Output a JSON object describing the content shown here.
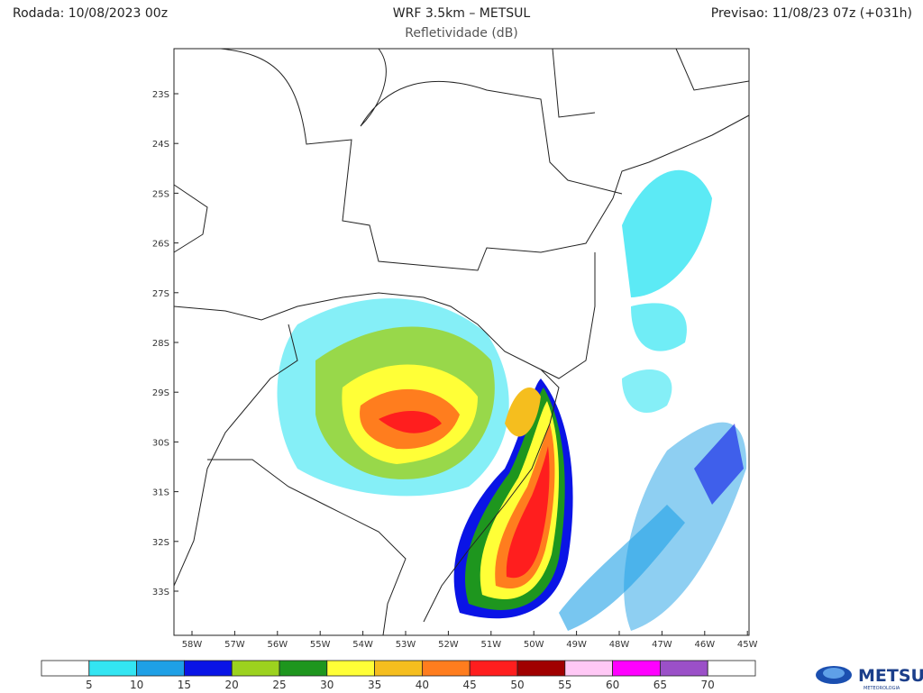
{
  "header": {
    "run": "Rodada: 10/08/2023 00z",
    "title": "WRF 3.5km – METSUL",
    "subtitle": "Refletividade (dB)",
    "forecast": "Previsao: 11/08/23 07z (+031h)"
  },
  "map": {
    "lat_labels": [
      "23S",
      "24S",
      "25S",
      "26S",
      "27S",
      "28S",
      "29S",
      "30S",
      "31S",
      "32S",
      "33S"
    ],
    "lon_labels": [
      "58W",
      "57W",
      "56W",
      "55W",
      "54W",
      "53W",
      "52W",
      "51W",
      "50W",
      "49W",
      "48W",
      "47W",
      "46W",
      "45W"
    ]
  },
  "colorbar": {
    "colors": [
      "#ffffff",
      "#33e5f2",
      "#1ea0e6",
      "#0a14e6",
      "#9cd21e",
      "#1e961e",
      "#ffff37",
      "#f5be1e",
      "#ff7d1e",
      "#ff1e1e",
      "#a00000",
      "#ffc8f5",
      "#ff00ff",
      "#9b50c8",
      "#ffffff"
    ],
    "labels": [
      5,
      10,
      15,
      20,
      25,
      30,
      35,
      40,
      45,
      50,
      55,
      60,
      65,
      70
    ]
  },
  "logo": {
    "name": "METSUL",
    "tagline": "METEOROLOGIA"
  }
}
